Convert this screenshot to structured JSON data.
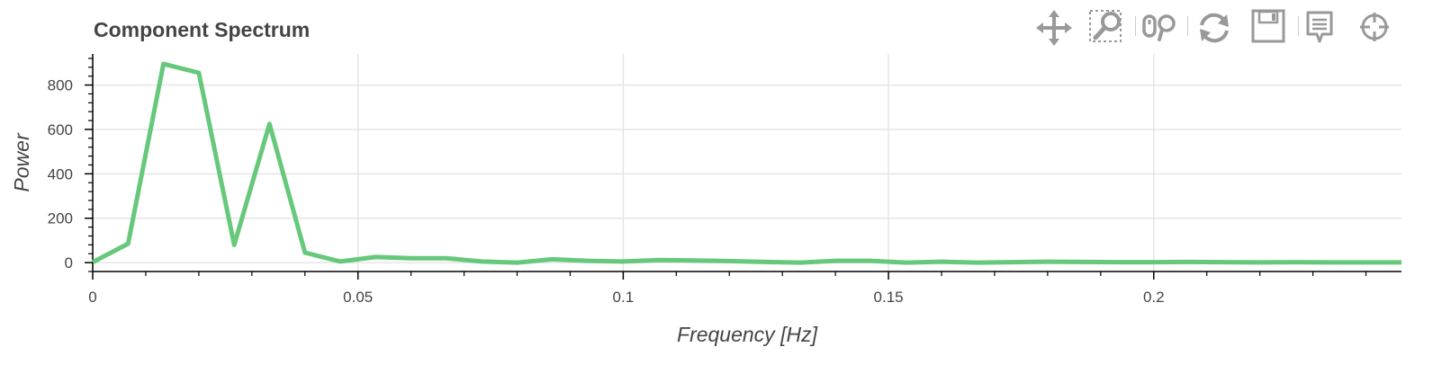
{
  "title": "Component Spectrum",
  "toolbar": {
    "tools": [
      {
        "name": "pan-tool",
        "icon": "pan-icon",
        "active": true
      },
      {
        "name": "box-zoom-tool",
        "icon": "box-zoom-icon",
        "active": false
      },
      {
        "name": "wheel-zoom-tool",
        "icon": "wheel-zoom-icon",
        "active": false
      },
      {
        "name": "reset-tool",
        "icon": "reset-icon",
        "active": false
      },
      {
        "name": "save-tool",
        "icon": "save-icon",
        "active": false
      },
      {
        "name": "hover-tool",
        "icon": "hover-icon",
        "active": true
      },
      {
        "name": "crosshair-tool",
        "icon": "crosshair-icon",
        "active": true
      }
    ],
    "active_color": "#4a9fd5",
    "icon_color": "#999999"
  },
  "chart_data": {
    "type": "line",
    "title": "Component Spectrum",
    "xlabel": "Frequency [Hz]",
    "ylabel": "Power",
    "xlim": [
      0,
      0.2467
    ],
    "ylim": [
      -40,
      940
    ],
    "xticks": [
      0,
      0.05,
      0.1,
      0.15,
      0.2
    ],
    "xtick_labels": [
      "0",
      "0.05",
      "0.1",
      "0.15",
      "0.2"
    ],
    "yticks": [
      0,
      200,
      400,
      600,
      800
    ],
    "ytick_labels": [
      "0",
      "200",
      "400",
      "600",
      "800"
    ],
    "grid": true,
    "line_color": "#66c87a",
    "series": [
      {
        "x": [
          0,
          0.00667,
          0.01333,
          0.02,
          0.02667,
          0.03333,
          0.04,
          0.04667,
          0.05333,
          0.06,
          0.06667,
          0.07333,
          0.08,
          0.08667,
          0.09333,
          0.1,
          0.10667,
          0.11333,
          0.12,
          0.12667,
          0.13333,
          0.14,
          0.14667,
          0.15333,
          0.16,
          0.16667,
          0.17333,
          0.18,
          0.18667,
          0.19333,
          0.2,
          0.20667,
          0.21333,
          0.22,
          0.22667,
          0.23333,
          0.24,
          0.2467
        ],
        "values": [
          2,
          85,
          895,
          855,
          80,
          625,
          45,
          5,
          25,
          20,
          20,
          5,
          0,
          15,
          8,
          5,
          12,
          10,
          7,
          3,
          0,
          8,
          8,
          0,
          4,
          0,
          2,
          4,
          3,
          2,
          2,
          3,
          2,
          1,
          2,
          1,
          1,
          1
        ]
      }
    ]
  }
}
